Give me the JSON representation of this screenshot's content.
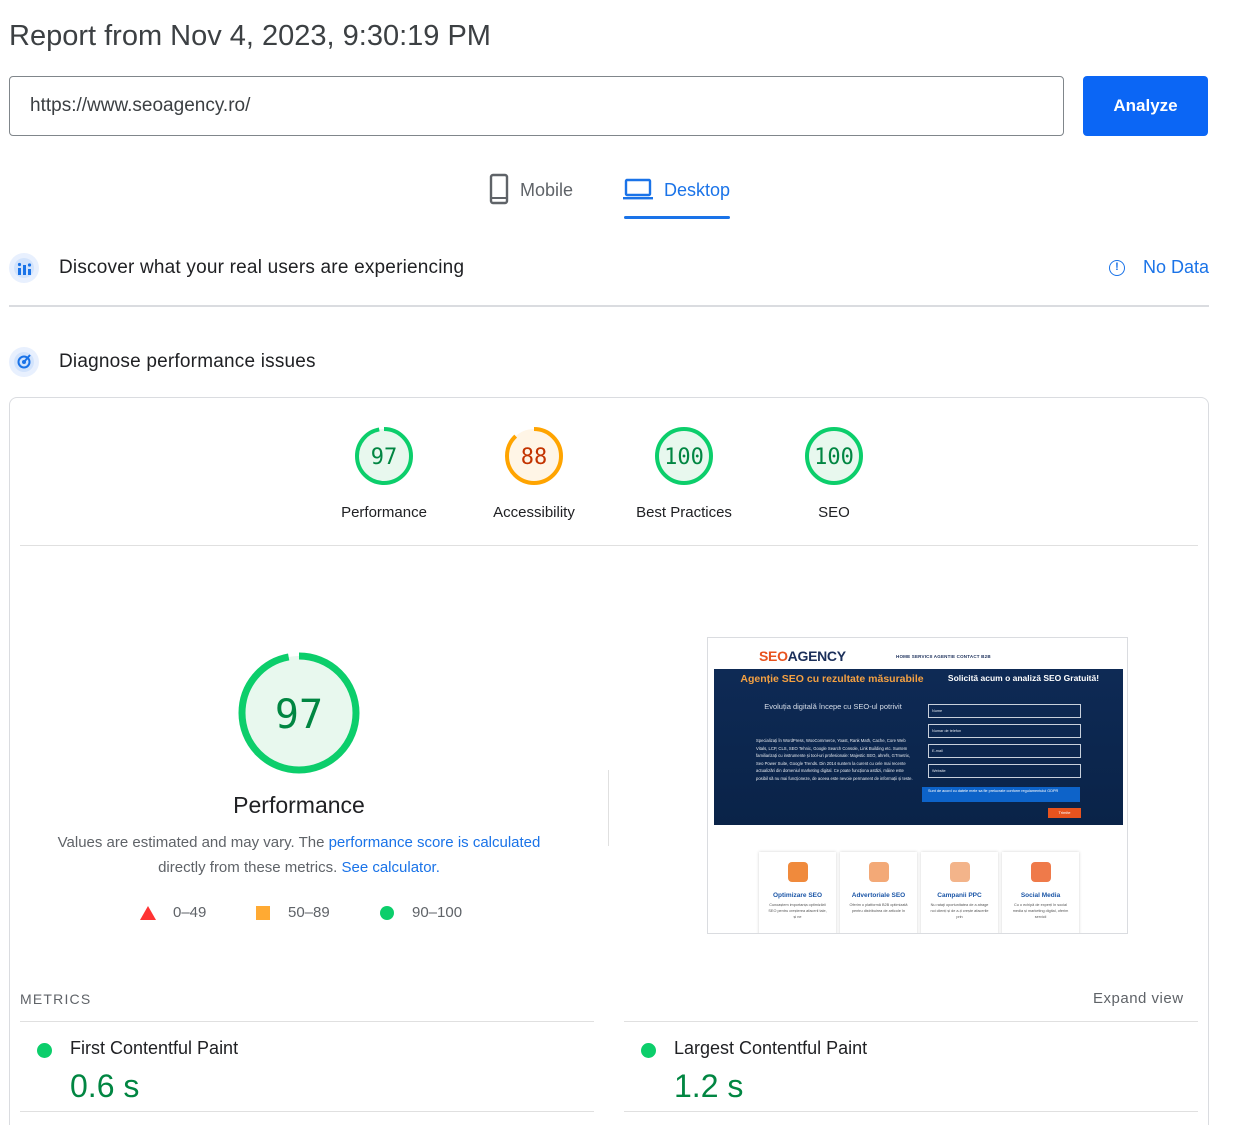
{
  "header": {
    "title": "Report from Nov 4, 2023, 9:30:19 PM"
  },
  "url_bar": {
    "value": "https://www.seoagency.ro/",
    "analyze_label": "Analyze"
  },
  "tabs": [
    {
      "label": "Mobile",
      "icon": "smartphone-icon",
      "active": false
    },
    {
      "label": "Desktop",
      "icon": "laptop-icon",
      "active": true
    }
  ],
  "field_data": {
    "title": "Discover what your real users are experiencing",
    "status": "No Data"
  },
  "lab_data": {
    "title": "Diagnose performance issues"
  },
  "categories": [
    {
      "label": "Performance",
      "score": "97",
      "rating": "pass"
    },
    {
      "label": "Accessibility",
      "score": "88",
      "rating": "average"
    },
    {
      "label": "Best Practices",
      "score": "100",
      "rating": "pass"
    },
    {
      "label": "SEO",
      "score": "100",
      "rating": "pass"
    }
  ],
  "performance": {
    "score": "97",
    "title": "Performance",
    "desc_prefix": "Values are estimated and may vary. The ",
    "desc_link1": "performance score is calculated",
    "desc_mid": "directly from these metrics. ",
    "desc_link2": "See calculator."
  },
  "legend": [
    {
      "range": "0–49",
      "shape": "triangle",
      "color": "#ff3333"
    },
    {
      "range": "50–89",
      "shape": "square",
      "color": "#ffaa33"
    },
    {
      "range": "90–100",
      "shape": "circle",
      "color": "#0cce6b"
    }
  ],
  "screenshot": {
    "logo_a": "SEO",
    "logo_b": "AGENCY",
    "nav": "HOME   SERVICII   AGENTIE   CONTACT   B2B",
    "hero_title": "Agenție SEO cu rezultate măsurabile",
    "hero_sub": "Evoluția digitală începe cu SEO-ul potrivit",
    "hero_list": "Specializați în WordPress, WooCommerce, Yoast, Rank Math, Cache, Core Web Vitals, LCP, CLS, SEO Tehnic, Google Search Console, Link Building etc. Suntem familiarizați cu instrumente și tool-uri profesionale: Majestic SEO, ahrefs, GTmetrix, Seo Power Suite, Google Trends. Din 2014 suntem la curent cu cele mai recente actualizări din domeniul marketing digital. Ce poate funcționa astăzi, mâine este posibil să nu mai funcționeze, de aceea este nevoie permanent de informații și teste.",
    "form_title": "Solicită acum o analiză SEO Gratuită!",
    "fields": [
      "Nume",
      "Numar de telefon",
      "E-mail",
      "Website"
    ],
    "gdpr": "Sunt de acord cu datele mele sa fie prelucrate conform regulamentului GDPR",
    "submit": "Trimite",
    "services": [
      {
        "title": "Optimizare SEO",
        "desc": "Cunoaștem importanța optimizării SEO pentru creșterea afacerii tale, și ne"
      },
      {
        "title": "Advertoriale SEO",
        "desc": "Oferim o platformă B2B optimizată pentru distribuirea de articole în"
      },
      {
        "title": "Campanii PPC",
        "desc": "Nu rataţi oportunitatea de a atrage noi clienți și de a-ți crește afacerile prin"
      },
      {
        "title": "Social Media",
        "desc": "Cu o echipă de experți în social media și marketing digital, oferim servicii"
      }
    ]
  },
  "metrics": {
    "label": "METRICS",
    "expand": "Expand view",
    "items": [
      {
        "name": "First Contentful Paint",
        "value": "0.6 s",
        "rating": "pass"
      },
      {
        "name": "Largest Contentful Paint",
        "value": "1.2 s",
        "rating": "pass"
      }
    ]
  },
  "colors": {
    "pass": "#0cce6b",
    "average": "#ffa400",
    "accent": "#1a73e8",
    "analyze_button": "#0b66f5"
  }
}
